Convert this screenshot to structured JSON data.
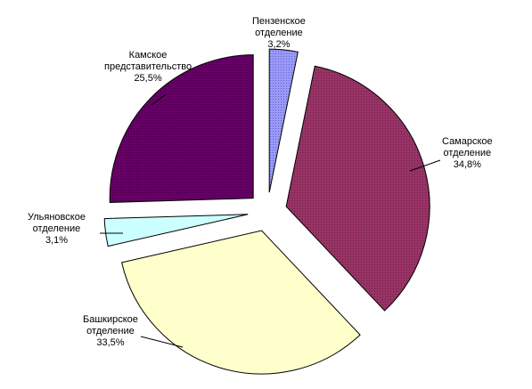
{
  "chart_data": {
    "type": "pie",
    "exploded": true,
    "slices": [
      {
        "name_lines": [
          "Пензенское",
          "отделение"
        ],
        "value": 3.2,
        "value_label": "3,2%",
        "color": "#9999ff",
        "pattern": "dots"
      },
      {
        "name_lines": [
          "Самарское",
          "отделение"
        ],
        "value": 34.8,
        "value_label": "34,8%",
        "color": "#993366",
        "pattern": "dots"
      },
      {
        "name_lines": [
          "Башкирское",
          "отделение"
        ],
        "value": 33.5,
        "value_label": "33,5%",
        "color": "#ffffcc",
        "pattern": "none"
      },
      {
        "name_lines": [
          "Ульяновское",
          "отделение"
        ],
        "value": 3.1,
        "value_label": "3,1%",
        "color": "#ccffff",
        "pattern": "none"
      },
      {
        "name_lines": [
          "Камское",
          "представительство"
        ],
        "value": 25.5,
        "value_label": "25,5%",
        "color": "#660066",
        "pattern": "dots"
      }
    ]
  }
}
